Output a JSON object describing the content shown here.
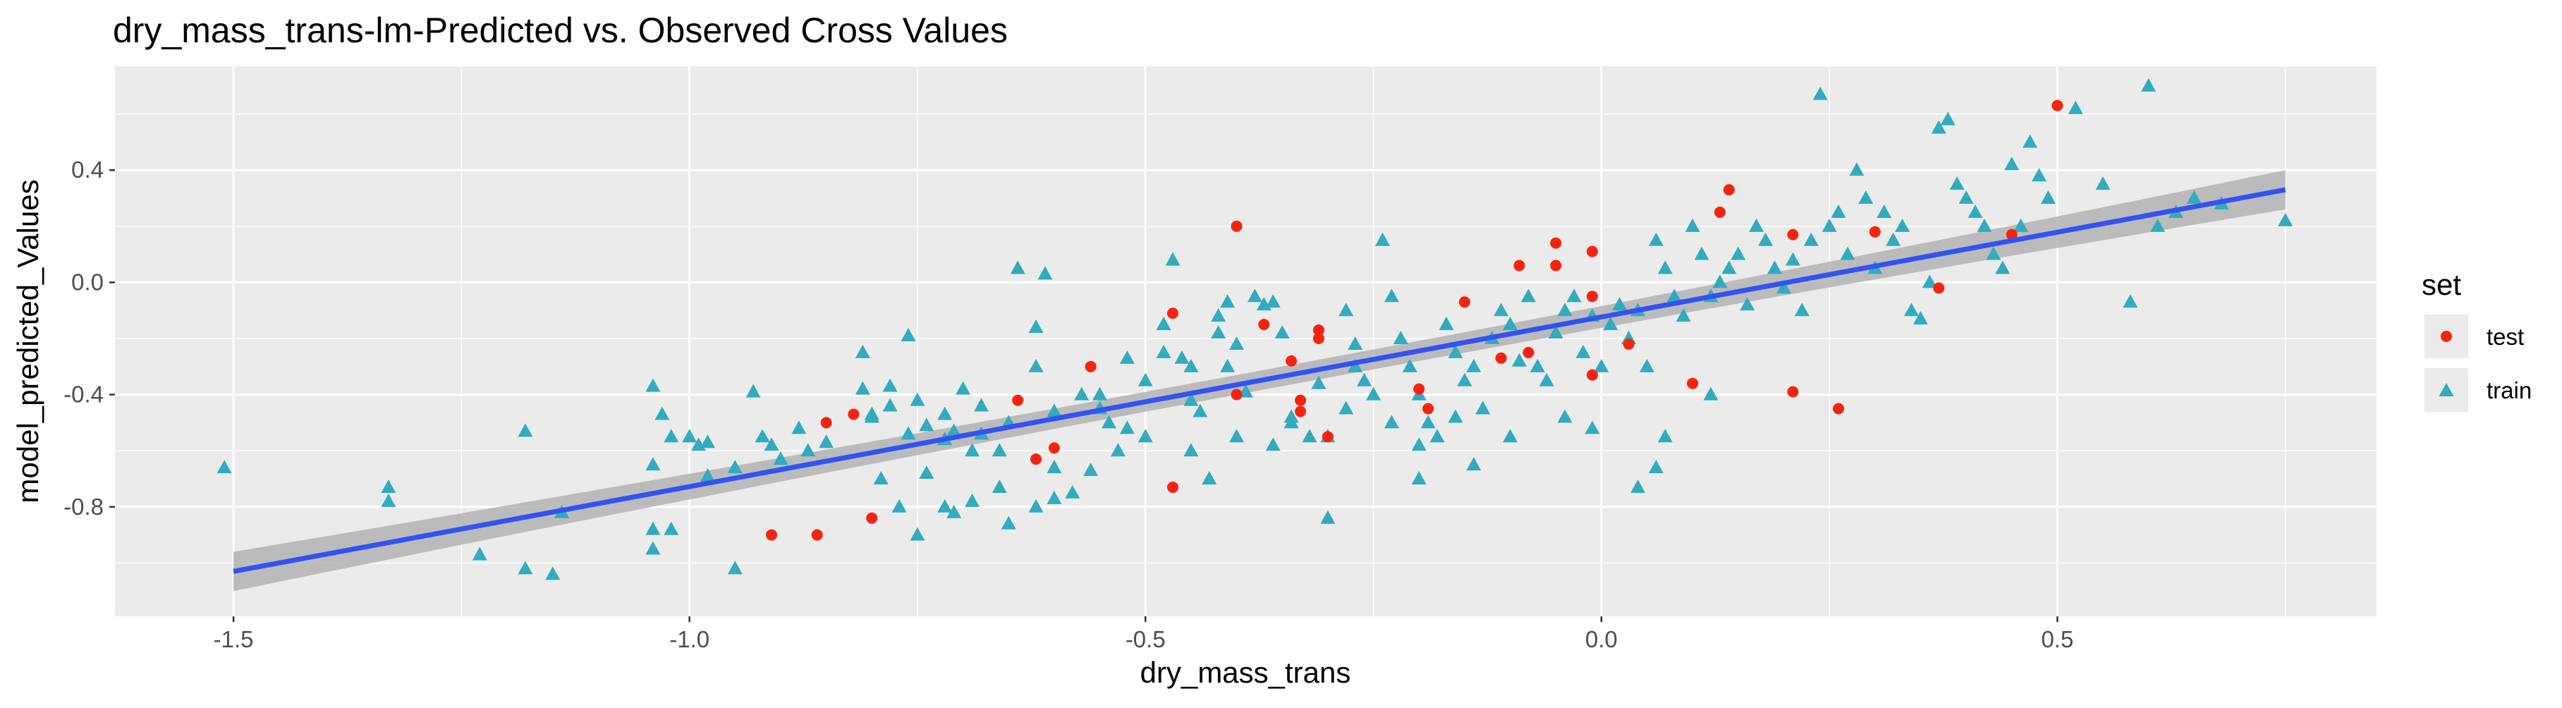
{
  "chart_data": {
    "type": "scatter",
    "title": "dry_mass_trans-lm-Predicted vs. Observed Cross Values",
    "xlabel": "dry_mass_trans",
    "ylabel": "model_predicted_Values",
    "xlim": [
      -1.63,
      0.85
    ],
    "ylim": [
      -1.19,
      0.77
    ],
    "x_ticks": [
      -1.5,
      -1.0,
      -0.5,
      0.0,
      0.5
    ],
    "x_tick_labels": [
      "-1.5",
      "-1.0",
      "-0.5",
      "0.0",
      "0.5"
    ],
    "y_ticks": [
      -0.8,
      -0.4,
      0.0,
      0.4
    ],
    "y_tick_labels": [
      "-0.8",
      "-0.4",
      "0.0",
      "0.4"
    ],
    "grid": true,
    "legend": {
      "title": "set",
      "placement": "right",
      "entries": [
        "test",
        "train"
      ]
    },
    "fit_line": {
      "x": [
        -1.5,
        0.75
      ],
      "y": [
        -1.03,
        0.33
      ],
      "color": "#3352f2",
      "band_color": "#b3b3b3"
    },
    "colors": {
      "panel": "#ebebeb",
      "grid": "#ffffff",
      "test": "#f8230f",
      "train": "#32abc0"
    },
    "series": [
      {
        "name": "test",
        "marker": "circle",
        "points": [
          [
            -0.4,
            0.2
          ],
          [
            0.5,
            0.63
          ],
          [
            0.14,
            0.33
          ],
          [
            0.13,
            0.25
          ],
          [
            0.21,
            0.17
          ],
          [
            0.3,
            0.18
          ],
          [
            0.45,
            0.17
          ],
          [
            -0.05,
            0.14
          ],
          [
            -0.01,
            0.11
          ],
          [
            -0.09,
            0.06
          ],
          [
            -0.05,
            0.06
          ],
          [
            0.37,
            -0.02
          ],
          [
            -0.15,
            -0.07
          ],
          [
            -0.01,
            -0.05
          ],
          [
            -0.47,
            -0.11
          ],
          [
            -0.37,
            -0.15
          ],
          [
            -0.31,
            -0.17
          ],
          [
            -0.31,
            -0.2
          ],
          [
            -0.08,
            -0.25
          ],
          [
            -0.11,
            -0.27
          ],
          [
            0.03,
            -0.22
          ],
          [
            -0.56,
            -0.3
          ],
          [
            -0.34,
            -0.28
          ],
          [
            -0.01,
            -0.33
          ],
          [
            0.1,
            -0.36
          ],
          [
            -0.2,
            -0.38
          ],
          [
            -0.4,
            -0.4
          ],
          [
            -0.33,
            -0.42
          ],
          [
            -0.64,
            -0.42
          ],
          [
            0.21,
            -0.39
          ],
          [
            -0.33,
            -0.46
          ],
          [
            -0.19,
            -0.45
          ],
          [
            0.26,
            -0.45
          ],
          [
            -0.82,
            -0.47
          ],
          [
            -0.85,
            -0.5
          ],
          [
            -0.3,
            -0.55
          ],
          [
            -0.6,
            -0.59
          ],
          [
            -0.62,
            -0.63
          ],
          [
            -0.47,
            -0.73
          ],
          [
            -0.8,
            -0.84
          ],
          [
            -0.91,
            -0.9
          ],
          [
            -0.86,
            -0.9
          ]
        ]
      },
      {
        "name": "train",
        "marker": "triangle",
        "points": [
          [
            -1.51,
            -0.66
          ],
          [
            -1.33,
            -0.73
          ],
          [
            -1.33,
            -0.78
          ],
          [
            -1.23,
            -0.97
          ],
          [
            -1.18,
            -1.02
          ],
          [
            -1.15,
            -1.04
          ],
          [
            -1.18,
            -0.53
          ],
          [
            -1.14,
            -0.82
          ],
          [
            -1.04,
            -0.37
          ],
          [
            -1.03,
            -0.47
          ],
          [
            -1.04,
            -0.65
          ],
          [
            -1.02,
            -0.55
          ],
          [
            -1.0,
            -0.55
          ],
          [
            -0.99,
            -0.58
          ],
          [
            -0.98,
            -0.57
          ],
          [
            -1.04,
            -0.88
          ],
          [
            -1.04,
            -0.95
          ],
          [
            -1.02,
            -0.88
          ],
          [
            -0.98,
            -0.69
          ],
          [
            -0.93,
            -0.39
          ],
          [
            -0.92,
            -0.55
          ],
          [
            -0.9,
            -0.63
          ],
          [
            -0.95,
            -0.66
          ],
          [
            -0.95,
            -1.02
          ],
          [
            -0.87,
            -0.6
          ],
          [
            -0.85,
            -0.57
          ],
          [
            -0.81,
            -0.38
          ],
          [
            -0.8,
            -0.47
          ],
          [
            -0.76,
            -0.54
          ],
          [
            -0.74,
            -0.51
          ],
          [
            -0.72,
            -0.56
          ],
          [
            -0.71,
            -0.53
          ],
          [
            -0.69,
            -0.6
          ],
          [
            -0.69,
            -0.78
          ],
          [
            -0.71,
            -0.82
          ],
          [
            -0.72,
            -0.8
          ],
          [
            -0.74,
            -0.68
          ],
          [
            -0.75,
            -0.42
          ],
          [
            -0.76,
            -0.19
          ],
          [
            -0.78,
            -0.37
          ],
          [
            -0.78,
            -0.44
          ],
          [
            -0.8,
            -0.48
          ],
          [
            -0.79,
            -0.7
          ],
          [
            -0.77,
            -0.8
          ],
          [
            -0.75,
            -0.9
          ],
          [
            -0.81,
            -0.25
          ],
          [
            -0.68,
            -0.54
          ],
          [
            -0.66,
            -0.6
          ],
          [
            -0.66,
            -0.73
          ],
          [
            -0.65,
            -0.86
          ],
          [
            -0.62,
            -0.8
          ],
          [
            -0.6,
            -0.77
          ],
          [
            -0.64,
            0.05
          ],
          [
            -0.61,
            0.03
          ],
          [
            -0.62,
            -0.16
          ],
          [
            -0.62,
            -0.3
          ],
          [
            -0.6,
            -0.46
          ],
          [
            -0.57,
            -0.4
          ],
          [
            -0.55,
            -0.4
          ],
          [
            -0.54,
            -0.5
          ],
          [
            -0.52,
            -0.27
          ],
          [
            -0.5,
            -0.35
          ],
          [
            -0.48,
            -0.25
          ],
          [
            -0.47,
            0.08
          ],
          [
            -0.46,
            -0.27
          ],
          [
            -0.45,
            -0.42
          ],
          [
            -0.44,
            -0.46
          ],
          [
            -0.42,
            -0.12
          ],
          [
            -0.42,
            -0.18
          ],
          [
            -0.41,
            -0.3
          ],
          [
            -0.4,
            -0.22
          ],
          [
            -0.39,
            -0.39
          ],
          [
            -0.38,
            -0.05
          ],
          [
            -0.37,
            -0.08
          ],
          [
            -0.36,
            -0.07
          ],
          [
            -0.35,
            -0.18
          ],
          [
            -0.34,
            -0.5
          ],
          [
            -0.32,
            -0.55
          ],
          [
            -0.31,
            -0.36
          ],
          [
            -0.3,
            -0.84
          ],
          [
            -0.28,
            -0.1
          ],
          [
            -0.27,
            -0.22
          ],
          [
            -0.27,
            -0.3
          ],
          [
            -0.26,
            -0.35
          ],
          [
            -0.25,
            -0.4
          ],
          [
            -0.24,
            0.15
          ],
          [
            -0.23,
            -0.05
          ],
          [
            -0.22,
            -0.2
          ],
          [
            -0.21,
            -0.3
          ],
          [
            -0.2,
            -0.4
          ],
          [
            -0.19,
            -0.5
          ],
          [
            -0.18,
            -0.55
          ],
          [
            -0.17,
            -0.15
          ],
          [
            -0.16,
            -0.25
          ],
          [
            -0.15,
            -0.35
          ],
          [
            -0.14,
            -0.3
          ],
          [
            -0.13,
            -0.45
          ],
          [
            -0.12,
            -0.2
          ],
          [
            -0.11,
            -0.1
          ],
          [
            -0.1,
            -0.15
          ],
          [
            -0.09,
            -0.28
          ],
          [
            -0.08,
            -0.05
          ],
          [
            -0.07,
            -0.3
          ],
          [
            -0.06,
            -0.35
          ],
          [
            -0.05,
            -0.18
          ],
          [
            -0.04,
            -0.1
          ],
          [
            -0.03,
            -0.05
          ],
          [
            -0.02,
            -0.25
          ],
          [
            -0.01,
            -0.12
          ],
          [
            0.0,
            -0.3
          ],
          [
            0.01,
            -0.15
          ],
          [
            0.02,
            -0.08
          ],
          [
            0.03,
            -0.2
          ],
          [
            0.04,
            -0.1
          ],
          [
            0.05,
            -0.3
          ],
          [
            0.06,
            0.15
          ],
          [
            0.07,
            0.05
          ],
          [
            0.08,
            -0.05
          ],
          [
            0.09,
            -0.12
          ],
          [
            0.1,
            0.2
          ],
          [
            0.11,
            0.1
          ],
          [
            0.12,
            -0.05
          ],
          [
            0.13,
            0.0
          ],
          [
            0.14,
            0.05
          ],
          [
            0.15,
            0.1
          ],
          [
            0.16,
            -0.08
          ],
          [
            0.17,
            0.2
          ],
          [
            0.18,
            0.15
          ],
          [
            0.19,
            0.05
          ],
          [
            0.2,
            -0.02
          ],
          [
            0.21,
            0.08
          ],
          [
            0.22,
            -0.1
          ],
          [
            0.23,
            0.15
          ],
          [
            0.24,
            0.67
          ],
          [
            0.25,
            0.2
          ],
          [
            0.26,
            0.25
          ],
          [
            0.27,
            0.1
          ],
          [
            0.28,
            0.4
          ],
          [
            0.29,
            0.3
          ],
          [
            0.3,
            0.05
          ],
          [
            0.31,
            0.25
          ],
          [
            0.32,
            0.15
          ],
          [
            0.33,
            0.2
          ],
          [
            0.34,
            -0.1
          ],
          [
            0.35,
            -0.13
          ],
          [
            0.36,
            0.0
          ],
          [
            0.37,
            0.55
          ],
          [
            0.38,
            0.58
          ],
          [
            0.39,
            0.35
          ],
          [
            0.4,
            0.3
          ],
          [
            0.41,
            0.25
          ],
          [
            0.42,
            0.2
          ],
          [
            0.43,
            0.1
          ],
          [
            0.44,
            0.05
          ],
          [
            0.45,
            0.42
          ],
          [
            0.46,
            0.2
          ],
          [
            0.47,
            0.5
          ],
          [
            0.48,
            0.38
          ],
          [
            0.49,
            0.3
          ],
          [
            0.52,
            0.62
          ],
          [
            0.55,
            0.35
          ],
          [
            0.58,
            -0.07
          ],
          [
            0.6,
            0.7
          ],
          [
            0.61,
            0.2
          ],
          [
            0.63,
            0.25
          ],
          [
            0.65,
            0.3
          ],
          [
            0.68,
            0.28
          ],
          [
            0.75,
            0.22
          ],
          [
            -0.5,
            -0.55
          ],
          [
            -0.53,
            -0.6
          ],
          [
            -0.45,
            -0.6
          ],
          [
            -0.43,
            -0.7
          ],
          [
            -0.4,
            -0.55
          ],
          [
            -0.36,
            -0.58
          ],
          [
            -0.34,
            -0.48
          ],
          [
            -0.56,
            -0.67
          ],
          [
            -0.58,
            -0.75
          ],
          [
            -0.6,
            -0.66
          ],
          [
            -0.45,
            -0.3
          ],
          [
            -0.3,
            -0.55
          ],
          [
            -0.28,
            -0.45
          ],
          [
            -0.23,
            -0.5
          ],
          [
            -0.2,
            -0.58
          ],
          [
            -0.16,
            -0.48
          ],
          [
            0.04,
            -0.73
          ],
          [
            0.07,
            -0.55
          ],
          [
            0.12,
            -0.4
          ],
          [
            -0.01,
            -0.52
          ],
          [
            -0.04,
            -0.48
          ],
          [
            0.06,
            -0.66
          ],
          [
            -0.1,
            -0.55
          ],
          [
            -0.14,
            -0.65
          ],
          [
            -0.2,
            -0.7
          ],
          [
            -0.48,
            -0.15
          ],
          [
            -0.41,
            -0.07
          ],
          [
            -0.52,
            -0.52
          ],
          [
            -0.55,
            -0.45
          ],
          [
            -0.65,
            -0.5
          ],
          [
            -0.68,
            -0.44
          ],
          [
            -0.72,
            -0.47
          ],
          [
            -0.7,
            -0.38
          ],
          [
            -0.88,
            -0.52
          ],
          [
            -0.91,
            -0.58
          ]
        ]
      }
    ]
  }
}
